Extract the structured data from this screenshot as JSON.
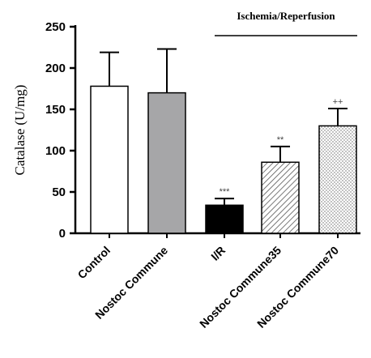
{
  "chart_data": {
    "type": "bar",
    "ylabel": "Catalase (U/mg)",
    "ylim": [
      0,
      250
    ],
    "yticks": [
      0,
      50,
      100,
      150,
      200,
      250
    ],
    "group_label": "Ischemia/Reperfusion",
    "bars": [
      {
        "category": "Control",
        "value": 178,
        "error": 41,
        "fill": "white",
        "significance": ""
      },
      {
        "category": "Nostoc Commune",
        "value": 170,
        "error": 53,
        "fill": "gray",
        "significance": ""
      },
      {
        "category": "I/R",
        "value": 34,
        "error": 8,
        "fill": "black",
        "significance": "***"
      },
      {
        "category": "Nostoc Commune35",
        "value": 86,
        "error": 19,
        "fill": "diagonal-hatch",
        "significance": "**"
      },
      {
        "category": "Nostoc Commune70",
        "value": 130,
        "error": 21,
        "fill": "dots",
        "significance": "++"
      }
    ],
    "grid": false,
    "colors": {
      "gray": "#a6a6a8",
      "black": "#000000",
      "axis": "#000000"
    }
  }
}
